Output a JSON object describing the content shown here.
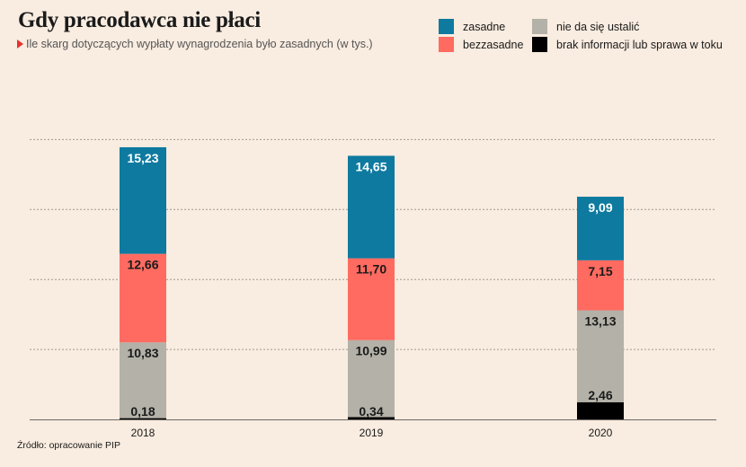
{
  "title": "Gdy pracodawca nie płaci",
  "subtitle": "Ile skarg dotyczących wypłaty wynagrodzenia było zasadnych (w tys.)",
  "source": "Źródło: opracowanie PIP",
  "colors": {
    "zasadne": "#0e7aa0",
    "bezzasadne": "#ff6b61",
    "nie_da_sie_ustalic": "#b3b1a8",
    "brak_informacji": "#000000",
    "background": "#f9ece0"
  },
  "legend": {
    "zasadne": "zasadne",
    "bezzasadne": "bezzasadne",
    "nie_da_sie_ustalic": "nie da się ustalić",
    "brak_informacji": "brak informacji lub sprawa w toku"
  },
  "chart_data": {
    "type": "bar",
    "stacked": true,
    "categories": [
      "2018",
      "2019",
      "2020"
    ],
    "series": [
      {
        "name": "brak informacji lub sprawa w toku",
        "key": "brak_informacji",
        "values": [
          0.18,
          0.34,
          2.46
        ],
        "labels": [
          "0,18",
          "0,34",
          "2,46"
        ]
      },
      {
        "name": "nie da się ustalić",
        "key": "nie_da_sie_ustalic",
        "values": [
          10.83,
          10.99,
          13.13
        ],
        "labels": [
          "10,83",
          "10,99",
          "13,13"
        ]
      },
      {
        "name": "bezzasadne",
        "key": "bezzasadne",
        "values": [
          12.66,
          11.7,
          7.15
        ],
        "labels": [
          "12,66",
          "11,70",
          "7,15"
        ]
      },
      {
        "name": "zasadne",
        "key": "zasadne",
        "values": [
          15.23,
          14.65,
          9.09
        ],
        "labels": [
          "15,23",
          "14,65",
          "9,09"
        ]
      }
    ],
    "ylim": [
      0,
      48
    ],
    "grid": true,
    "legend_position": "top-right"
  }
}
